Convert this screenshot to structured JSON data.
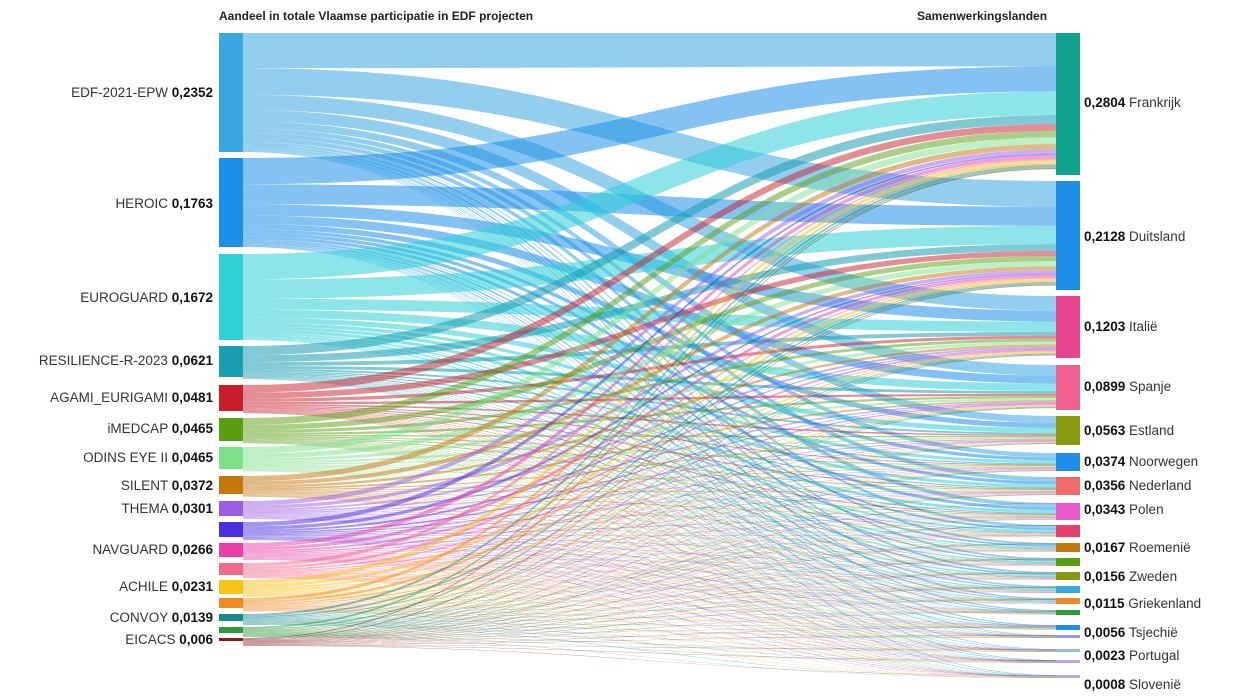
{
  "chart_data": {
    "type": "sankey",
    "left_header": "Aandeel in totale Vlaamse participatie in EDF projecten",
    "right_header": "Samenwerkingslanden",
    "sources": [
      {
        "name": "EDF-2021-EPW",
        "value": "0,2352",
        "color": "#3aa6e0"
      },
      {
        "name": "HEROIC",
        "value": "0,1763",
        "color": "#1e8fe8"
      },
      {
        "name": "EUROGUARD",
        "value": "0,1672",
        "color": "#2fd0d8"
      },
      {
        "name": "RESILIENCE-R-2023",
        "value": "0,0621",
        "color": "#1a9fb2"
      },
      {
        "name": "AGAMI_EURIGAMI",
        "value": "0,0481",
        "color": "#c81e2a"
      },
      {
        "name": "iMEDCAP",
        "value": "0,0465",
        "color": "#5a9e12"
      },
      {
        "name": "ODINS EYE II",
        "value": "0,0465",
        "color": "#7fe08a"
      },
      {
        "name": "SILENT",
        "value": "0,0372",
        "color": "#c4770d"
      },
      {
        "name": "THEMA",
        "value": "0,0301",
        "color": "#9b5de5"
      },
      {
        "name": "",
        "value": "",
        "color": "#4a2ee0"
      },
      {
        "name": "NAVGUARD",
        "value": "0,0266",
        "color": "#e83fa8"
      },
      {
        "name": "",
        "value": "",
        "color": "#f06a8a"
      },
      {
        "name": "ACHILE",
        "value": "0,0231",
        "color": "#f7c21a"
      },
      {
        "name": "",
        "value": "",
        "color": "#f08a20"
      },
      {
        "name": "CONVOY",
        "value": "0,0139",
        "color": "#168a8a"
      },
      {
        "name": "",
        "value": "",
        "color": "#2a9a3a"
      },
      {
        "name": "EICACS",
        "value": "0,006",
        "color": "#8a1a1a"
      }
    ],
    "targets": [
      {
        "name": "Frankrijk",
        "value": "0,2804",
        "color": "#12a38e"
      },
      {
        "name": "Duitsland",
        "value": "0,2128",
        "color": "#1e8fe8"
      },
      {
        "name": "Italië",
        "value": "0,1203",
        "color": "#e8458f"
      },
      {
        "name": "Spanje",
        "value": "0,0899",
        "color": "#f0608e"
      },
      {
        "name": "Estland",
        "value": "0,0563",
        "color": "#8a9a10"
      },
      {
        "name": "Noorwegen",
        "value": "0,0374",
        "color": "#1e8fe8"
      },
      {
        "name": "Nederland",
        "value": "0,0356",
        "color": "#f06a6a"
      },
      {
        "name": "Polen",
        "value": "0,0343",
        "color": "#e858c8"
      },
      {
        "name": "",
        "value": "",
        "color": "#e8406a"
      },
      {
        "name": "Roemenië",
        "value": "0,0167",
        "color": "#c4770d"
      },
      {
        "name": "",
        "value": "",
        "color": "#5a9e12"
      },
      {
        "name": "Zweden",
        "value": "0,0156",
        "color": "#8a9a10"
      },
      {
        "name": "",
        "value": "",
        "color": "#3aa6e0"
      },
      {
        "name": "Griekenland",
        "value": "0,0115",
        "color": "#f08a20"
      },
      {
        "name": "",
        "value": "",
        "color": "#2a9a3a"
      },
      {
        "name": "Tsjechië",
        "value": "0,0056",
        "color": "#1e8fe8"
      },
      {
        "name": "",
        "value": "",
        "color": "#9b9bd8"
      },
      {
        "name": "Portugal",
        "value": "0,0023",
        "color": "#8fc0d8"
      },
      {
        "name": "",
        "value": "",
        "color": "#c0a0e8"
      },
      {
        "name": "Slovenië",
        "value": "0,0008",
        "color": "#b0b0e0"
      }
    ]
  }
}
